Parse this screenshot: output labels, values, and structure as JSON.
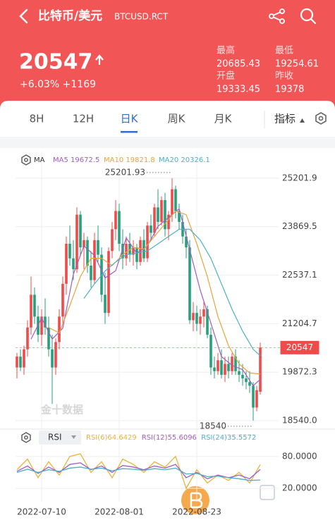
{
  "header": {
    "title": "比特币/美元",
    "symbol": "BTCUSD.RCT"
  },
  "quote": {
    "price": "20547",
    "change": "+6.03% +1169",
    "stats": [
      {
        "label": "最高",
        "value": "20685.43"
      },
      {
        "label": "最低",
        "value": "19254.61"
      },
      {
        "label": "开盘",
        "value": "19333.45"
      },
      {
        "label": "昨收",
        "value": "19378"
      }
    ]
  },
  "tabs": {
    "items": [
      "8H",
      "12H",
      "日K",
      "周K",
      "月K"
    ],
    "active": 2,
    "indicator": "指标"
  },
  "chart_data": [
    {
      "type": "candlestick",
      "legend_title": "MA",
      "grid": true,
      "ylim": [
        18386,
        25936
      ],
      "yticks": [
        25201.9,
        23869.5,
        22537.1,
        21204.7,
        19872.3,
        {
          "value": 18540,
          "label": "18540.0"
        }
      ],
      "xticks": [
        {
          "value": 7,
          "label": "2022-07-10"
        },
        {
          "value": 29,
          "label": "2022-08-01"
        },
        {
          "value": 51,
          "label": "2022-08-23"
        }
      ],
      "up_color": "#ef4b4b",
      "down_color": "#26a17b",
      "ohlc": [
        [
          20000,
          20400,
          19700,
          20300
        ],
        [
          20300,
          20500,
          19900,
          20000
        ],
        [
          20000,
          20600,
          19800,
          20500
        ],
        [
          20500,
          21300,
          20300,
          21100
        ],
        [
          21100,
          22500,
          20900,
          22000
        ],
        [
          22000,
          22200,
          21200,
          21400
        ],
        [
          21400,
          21700,
          20700,
          20900
        ],
        [
          20900,
          21600,
          20600,
          21400
        ],
        [
          21400,
          21900,
          20900,
          21100
        ],
        [
          21100,
          21400,
          20300,
          20500
        ],
        [
          20500,
          20900,
          19000,
          20000
        ],
        [
          20000,
          20800,
          19800,
          20700
        ],
        [
          20700,
          21600,
          20500,
          21400
        ],
        [
          21400,
          22500,
          21200,
          22300
        ],
        [
          22300,
          23600,
          22000,
          23400
        ],
        [
          23400,
          23900,
          22800,
          23000
        ],
        [
          23000,
          23500,
          22400,
          22700
        ],
        [
          22700,
          24400,
          22600,
          24200
        ],
        [
          24200,
          24300,
          23100,
          23300
        ],
        [
          23300,
          23700,
          22700,
          23500
        ],
        [
          23500,
          23600,
          22600,
          22800
        ],
        [
          22800,
          23200,
          22200,
          22400
        ],
        [
          22400,
          23700,
          22300,
          23500
        ],
        [
          23500,
          23900,
          22900,
          23100
        ],
        [
          23100,
          23300,
          21800,
          22000
        ],
        [
          22000,
          22600,
          21200,
          21500
        ],
        [
          21500,
          23300,
          21400,
          23200
        ],
        [
          23200,
          24000,
          23000,
          23800
        ],
        [
          23800,
          24600,
          23500,
          24300
        ],
        [
          24300,
          24500,
          23200,
          23400
        ],
        [
          23400,
          23800,
          22700,
          23000
        ],
        [
          23000,
          23600,
          22800,
          23400
        ],
        [
          23400,
          23700,
          22900,
          23100
        ],
        [
          23100,
          23500,
          22800,
          23300
        ],
        [
          23300,
          23400,
          22700,
          22900
        ],
        [
          22900,
          23600,
          22800,
          23500
        ],
        [
          23500,
          23800,
          22900,
          23000
        ],
        [
          23000,
          24000,
          22900,
          23900
        ],
        [
          23900,
          24200,
          23500,
          23700
        ],
        [
          23700,
          24500,
          23600,
          24400
        ],
        [
          24400,
          24900,
          23800,
          24000
        ],
        [
          24000,
          24700,
          23900,
          24600
        ],
        [
          24600,
          24800,
          23600,
          23800
        ],
        [
          23800,
          24300,
          23500,
          24200
        ],
        [
          24200,
          25201.93,
          24000,
          24900
        ],
        [
          24900,
          25000,
          24100,
          24300
        ],
        [
          24300,
          24500,
          23800,
          24000
        ],
        [
          24000,
          24200,
          23400,
          23600
        ],
        [
          23600,
          23800,
          23000,
          23300
        ],
        [
          23300,
          23500,
          21200,
          21300
        ],
        [
          21300,
          21800,
          21000,
          21500
        ],
        [
          21500,
          21700,
          21000,
          21200
        ],
        [
          21200,
          21600,
          20900,
          21400
        ],
        [
          21400,
          21800,
          21100,
          21600
        ],
        [
          21600,
          21700,
          20800,
          20900
        ],
        [
          20900,
          21100,
          19800,
          20000
        ],
        [
          20000,
          20300,
          19700,
          19900
        ],
        [
          19900,
          20400,
          19800,
          20200
        ],
        [
          20200,
          20500,
          19700,
          19800
        ],
        [
          19800,
          20300,
          19600,
          20100
        ],
        [
          20100,
          20300,
          19700,
          19900
        ],
        [
          19900,
          20400,
          19800,
          20300
        ],
        [
          20300,
          20500,
          19800,
          19900
        ],
        [
          19900,
          20200,
          19600,
          19800
        ],
        [
          19800,
          20100,
          19500,
          19700
        ],
        [
          19700,
          19900,
          19400,
          19600
        ],
        [
          19600,
          19900,
          19300,
          19500
        ],
        [
          19500,
          19600,
          18540,
          18900
        ],
        [
          18900,
          19500,
          18800,
          19378
        ],
        [
          19333.45,
          20685.43,
          19254.61,
          20547
        ]
      ],
      "series": [
        {
          "name": "MA5 19672.5",
          "color": "#a35bc4",
          "x": [
            4,
            7,
            10,
            13,
            16,
            19,
            22,
            25,
            28,
            31,
            34,
            37,
            40,
            43,
            46,
            49,
            52,
            55,
            58,
            61,
            64,
            67,
            69
          ],
          "values": [
            20780,
            21360,
            20780,
            21080,
            22560,
            23340,
            23080,
            22460,
            22660,
            23560,
            23140,
            23340,
            23880,
            24120,
            24360,
            23240,
            22120,
            21220,
            20300,
            20060,
            19940,
            19500,
            19672.5
          ]
        },
        {
          "name": "MA10 19821.8",
          "color": "#e8a33d",
          "x": [
            9,
            12,
            15,
            18,
            21,
            24,
            27,
            30,
            33,
            36,
            39,
            42,
            45,
            48,
            51,
            54,
            57,
            60,
            63,
            66,
            69
          ],
          "values": [
            21100,
            20950,
            21700,
            22500,
            23000,
            23000,
            22800,
            23100,
            23300,
            23250,
            23600,
            23950,
            24300,
            24200,
            23400,
            22500,
            21400,
            20600,
            20100,
            19850,
            19821.8
          ]
        },
        {
          "name": "MA20 20326.1",
          "color": "#4bb0c8",
          "x": [
            19,
            22,
            25,
            28,
            31,
            34,
            37,
            40,
            43,
            46,
            49,
            52,
            55,
            58,
            61,
            64,
            67,
            69
          ],
          "values": [
            21900,
            22300,
            22650,
            22900,
            23100,
            23150,
            23200,
            23400,
            23600,
            23800,
            23800,
            23500,
            23000,
            22300,
            21600,
            21000,
            20500,
            20326.1
          ]
        }
      ],
      "annotations": [
        {
          "x": 44,
          "value": 25201.93
        },
        {
          "x": 67,
          "value": 18540
        }
      ],
      "last_price": {
        "value": 20547,
        "color": "#ef4b4b"
      },
      "watermark": "金十数据"
    },
    {
      "type": "line",
      "legend_title": "RSI",
      "ylim": [
        -5,
        101
      ],
      "yticks": [
        {
          "value": 80,
          "label": "80.0000"
        },
        {
          "value": 20,
          "label": "20.0000"
        }
      ],
      "series": [
        {
          "name": "RSI(6)64.6429",
          "color": "#e9b33a",
          "x": [
            0,
            3,
            6,
            9,
            12,
            15,
            18,
            21,
            24,
            27,
            30,
            33,
            36,
            39,
            42,
            45,
            48,
            51,
            54,
            57,
            60,
            63,
            66,
            69
          ],
          "values": [
            55,
            75,
            40,
            70,
            45,
            80,
            85,
            50,
            70,
            40,
            75,
            65,
            50,
            70,
            60,
            80,
            20,
            55,
            30,
            45,
            35,
            50,
            30,
            64.6429
          ]
        },
        {
          "name": "RSI(12)55.6096",
          "color": "#a35bc4",
          "x": [
            0,
            3,
            6,
            9,
            12,
            15,
            18,
            21,
            24,
            27,
            30,
            33,
            36,
            39,
            42,
            45,
            48,
            51,
            54,
            57,
            60,
            63,
            66,
            69
          ],
          "values": [
            52,
            62,
            48,
            60,
            50,
            65,
            68,
            55,
            62,
            50,
            63,
            60,
            55,
            62,
            58,
            65,
            40,
            50,
            38,
            45,
            40,
            45,
            38,
            55.6096
          ]
        },
        {
          "name": "RSI(24)35.5572",
          "color": "#4bb0c8",
          "x": [
            0,
            3,
            6,
            9,
            12,
            15,
            18,
            21,
            24,
            27,
            30,
            33,
            36,
            39,
            42,
            45,
            48,
            51,
            54,
            57,
            60,
            63,
            66,
            69
          ],
          "values": [
            50,
            56,
            50,
            55,
            52,
            58,
            60,
            56,
            58,
            53,
            57,
            56,
            54,
            57,
            55,
            58,
            47,
            48,
            42,
            43,
            40,
            38,
            35,
            35.5572
          ]
        }
      ]
    }
  ]
}
